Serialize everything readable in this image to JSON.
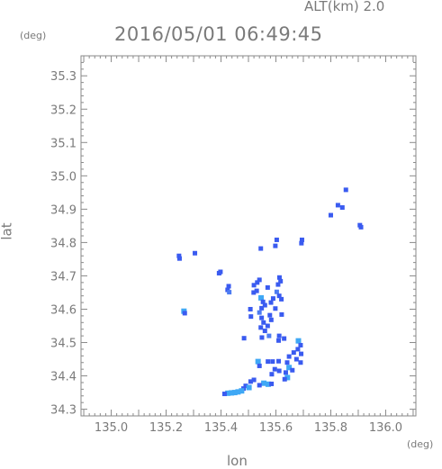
{
  "header": {
    "alt_label": "ALT(km) 2.0",
    "timestamp": "2016/05/01 06:49:45"
  },
  "axes": {
    "y_unit": "(deg)",
    "x_unit": "(deg)",
    "ylabel": "lat",
    "xlabel": "lon",
    "x_ticks": [
      "135.0",
      "135.2",
      "135.4",
      "135.6",
      "135.8",
      "136.0"
    ],
    "y_ticks": [
      "34.3",
      "34.4",
      "34.5",
      "34.6",
      "34.7",
      "34.8",
      "34.9",
      "35.0",
      "35.1",
      "35.2",
      "35.3"
    ]
  },
  "chart_data": {
    "type": "scatter",
    "xlabel": "lon",
    "ylabel": "lat",
    "xlim": [
      134.89,
      136.11
    ],
    "ylim": [
      34.28,
      35.36
    ],
    "colors": {
      "weak": "#4d7cf2",
      "moderate": "#3a5bf0",
      "strong": "#3fa8f5",
      "axis": "#8a8a8a"
    },
    "echoes": [
      {
        "lon": 135.855,
        "lat": 34.958,
        "level": "moderate"
      },
      {
        "lon": 135.826,
        "lat": 34.912,
        "level": "moderate"
      },
      {
        "lon": 135.842,
        "lat": 34.905,
        "level": "moderate"
      },
      {
        "lon": 135.8,
        "lat": 34.882,
        "level": "moderate"
      },
      {
        "lon": 135.906,
        "lat": 34.852,
        "level": "moderate"
      },
      {
        "lon": 135.91,
        "lat": 34.846,
        "level": "moderate"
      },
      {
        "lon": 135.695,
        "lat": 34.808,
        "level": "moderate"
      },
      {
        "lon": 135.693,
        "lat": 34.798,
        "level": "moderate"
      },
      {
        "lon": 135.603,
        "lat": 34.808,
        "level": "moderate"
      },
      {
        "lon": 135.598,
        "lat": 34.79,
        "level": "moderate"
      },
      {
        "lon": 135.545,
        "lat": 34.782,
        "level": "moderate"
      },
      {
        "lon": 135.305,
        "lat": 34.768,
        "level": "moderate"
      },
      {
        "lon": 135.247,
        "lat": 34.76,
        "level": "moderate"
      },
      {
        "lon": 135.249,
        "lat": 34.752,
        "level": "moderate"
      },
      {
        "lon": 135.398,
        "lat": 34.712,
        "level": "moderate"
      },
      {
        "lon": 135.393,
        "lat": 34.708,
        "level": "moderate"
      },
      {
        "lon": 135.613,
        "lat": 34.695,
        "level": "moderate"
      },
      {
        "lon": 135.617,
        "lat": 34.684,
        "level": "moderate"
      },
      {
        "lon": 135.608,
        "lat": 34.674,
        "level": "moderate"
      },
      {
        "lon": 135.54,
        "lat": 34.688,
        "level": "moderate"
      },
      {
        "lon": 135.532,
        "lat": 34.68,
        "level": "moderate"
      },
      {
        "lon": 135.428,
        "lat": 34.669,
        "level": "moderate"
      },
      {
        "lon": 135.424,
        "lat": 34.658,
        "level": "moderate"
      },
      {
        "lon": 135.43,
        "lat": 34.651,
        "level": "weak"
      },
      {
        "lon": 135.52,
        "lat": 34.672,
        "level": "moderate"
      },
      {
        "lon": 135.519,
        "lat": 34.65,
        "level": "moderate"
      },
      {
        "lon": 135.53,
        "lat": 34.655,
        "level": "moderate"
      },
      {
        "lon": 135.57,
        "lat": 34.665,
        "level": "moderate"
      },
      {
        "lon": 135.603,
        "lat": 34.652,
        "level": "weak"
      },
      {
        "lon": 135.612,
        "lat": 34.64,
        "level": "moderate"
      },
      {
        "lon": 135.62,
        "lat": 34.63,
        "level": "moderate"
      },
      {
        "lon": 135.546,
        "lat": 34.634,
        "level": "strong"
      },
      {
        "lon": 135.553,
        "lat": 34.622,
        "level": "moderate"
      },
      {
        "lon": 135.56,
        "lat": 34.612,
        "level": "moderate"
      },
      {
        "lon": 135.548,
        "lat": 34.603,
        "level": "moderate"
      },
      {
        "lon": 135.59,
        "lat": 34.632,
        "level": "moderate"
      },
      {
        "lon": 135.582,
        "lat": 34.62,
        "level": "moderate"
      },
      {
        "lon": 135.598,
        "lat": 34.602,
        "level": "moderate"
      },
      {
        "lon": 135.507,
        "lat": 34.6,
        "level": "moderate"
      },
      {
        "lon": 135.265,
        "lat": 34.594,
        "level": "strong"
      },
      {
        "lon": 135.268,
        "lat": 34.588,
        "level": "moderate"
      },
      {
        "lon": 135.509,
        "lat": 34.578,
        "level": "moderate"
      },
      {
        "lon": 135.54,
        "lat": 34.59,
        "level": "weak"
      },
      {
        "lon": 135.548,
        "lat": 34.574,
        "level": "moderate"
      },
      {
        "lon": 135.555,
        "lat": 34.56,
        "level": "moderate"
      },
      {
        "lon": 135.578,
        "lat": 34.582,
        "level": "moderate"
      },
      {
        "lon": 135.583,
        "lat": 34.568,
        "level": "moderate"
      },
      {
        "lon": 135.621,
        "lat": 34.584,
        "level": "moderate"
      },
      {
        "lon": 135.545,
        "lat": 34.545,
        "level": "moderate"
      },
      {
        "lon": 135.56,
        "lat": 34.535,
        "level": "moderate"
      },
      {
        "lon": 135.57,
        "lat": 34.55,
        "level": "moderate"
      },
      {
        "lon": 135.575,
        "lat": 34.52,
        "level": "weak"
      },
      {
        "lon": 135.549,
        "lat": 34.515,
        "level": "moderate"
      },
      {
        "lon": 135.484,
        "lat": 34.513,
        "level": "moderate"
      },
      {
        "lon": 135.612,
        "lat": 34.52,
        "level": "moderate"
      },
      {
        "lon": 135.61,
        "lat": 34.506,
        "level": "moderate"
      },
      {
        "lon": 135.63,
        "lat": 34.512,
        "level": "moderate"
      },
      {
        "lon": 135.682,
        "lat": 34.505,
        "level": "strong"
      },
      {
        "lon": 135.69,
        "lat": 34.492,
        "level": "moderate"
      },
      {
        "lon": 135.68,
        "lat": 34.48,
        "level": "moderate"
      },
      {
        "lon": 135.665,
        "lat": 34.47,
        "level": "moderate"
      },
      {
        "lon": 135.692,
        "lat": 34.466,
        "level": "moderate"
      },
      {
        "lon": 135.675,
        "lat": 34.45,
        "level": "moderate"
      },
      {
        "lon": 135.69,
        "lat": 34.44,
        "level": "moderate"
      },
      {
        "lon": 135.648,
        "lat": 34.458,
        "level": "moderate"
      },
      {
        "lon": 135.641,
        "lat": 34.44,
        "level": "moderate"
      },
      {
        "lon": 135.648,
        "lat": 34.425,
        "level": "strong"
      },
      {
        "lon": 135.66,
        "lat": 34.417,
        "level": "moderate"
      },
      {
        "lon": 135.636,
        "lat": 34.41,
        "level": "moderate"
      },
      {
        "lon": 135.571,
        "lat": 34.443,
        "level": "moderate"
      },
      {
        "lon": 135.588,
        "lat": 34.443,
        "level": "moderate"
      },
      {
        "lon": 135.61,
        "lat": 34.444,
        "level": "moderate"
      },
      {
        "lon": 135.535,
        "lat": 34.443,
        "level": "strong"
      },
      {
        "lon": 135.54,
        "lat": 34.43,
        "level": "moderate"
      },
      {
        "lon": 135.596,
        "lat": 34.42,
        "level": "moderate"
      },
      {
        "lon": 135.612,
        "lat": 34.415,
        "level": "moderate"
      },
      {
        "lon": 135.585,
        "lat": 34.405,
        "level": "moderate"
      },
      {
        "lon": 135.642,
        "lat": 34.395,
        "level": "strong"
      },
      {
        "lon": 135.632,
        "lat": 34.39,
        "level": "moderate"
      },
      {
        "lon": 135.52,
        "lat": 34.388,
        "level": "moderate"
      },
      {
        "lon": 135.508,
        "lat": 34.383,
        "level": "moderate"
      },
      {
        "lon": 135.556,
        "lat": 34.378,
        "level": "strong"
      },
      {
        "lon": 135.572,
        "lat": 34.375,
        "level": "strong"
      },
      {
        "lon": 135.584,
        "lat": 34.376,
        "level": "moderate"
      },
      {
        "lon": 135.54,
        "lat": 34.372,
        "level": "moderate"
      },
      {
        "lon": 135.49,
        "lat": 34.37,
        "level": "moderate"
      },
      {
        "lon": 135.482,
        "lat": 34.362,
        "level": "moderate"
      },
      {
        "lon": 135.475,
        "lat": 34.355,
        "level": "strong"
      },
      {
        "lon": 135.462,
        "lat": 34.352,
        "level": "strong"
      },
      {
        "lon": 135.45,
        "lat": 34.35,
        "level": "strong"
      },
      {
        "lon": 135.438,
        "lat": 34.349,
        "level": "strong"
      },
      {
        "lon": 135.425,
        "lat": 34.348,
        "level": "strong"
      },
      {
        "lon": 135.413,
        "lat": 34.346,
        "level": "moderate"
      },
      {
        "lon": 135.502,
        "lat": 34.365,
        "level": "strong"
      }
    ]
  }
}
